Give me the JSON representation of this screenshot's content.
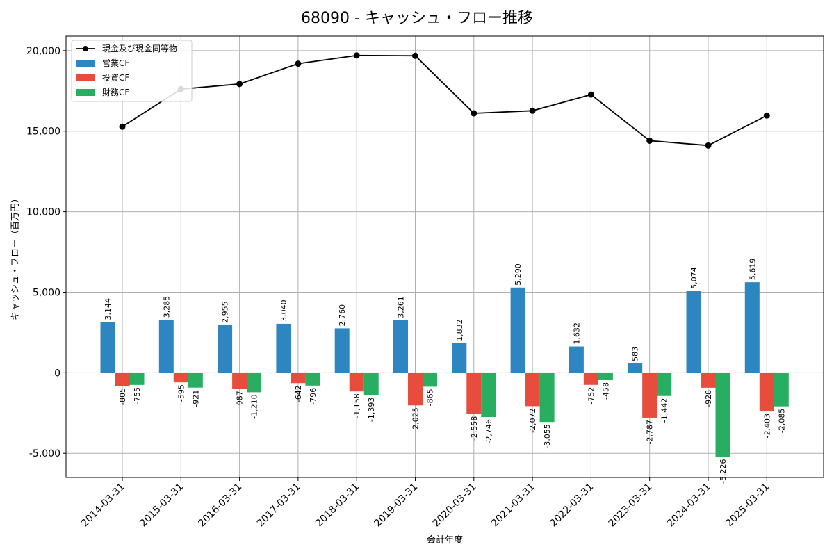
{
  "chart_data": {
    "type": "bar",
    "title": "68090 - キャッシュ・フロー推移",
    "xlabel": "会計年度",
    "ylabel": "キャッシュ・フロー（百万円）",
    "ylim": [
      -6500,
      20900
    ],
    "yticks": [
      -5000,
      0,
      5000,
      10000,
      15000,
      20000
    ],
    "ytick_labels": [
      "-5,000",
      "0",
      "5,000",
      "10,000",
      "15,000",
      "20,000"
    ],
    "grid": true,
    "legend_position": "top-left",
    "categories": [
      "2014-03-31",
      "2015-03-31",
      "2016-03-31",
      "2017-03-31",
      "2018-03-31",
      "2019-03-31",
      "2020-03-31",
      "2021-03-31",
      "2022-03-31",
      "2023-03-31",
      "2024-03-31",
      "2025-03-31"
    ],
    "series": [
      {
        "name": "営業CF",
        "type": "bar",
        "color": "#2e86c1",
        "values": [
          3144,
          3285,
          2955,
          3040,
          2760,
          3261,
          1832,
          5290,
          1632,
          583,
          5074,
          5619
        ],
        "labels": [
          "3,144",
          "3,285",
          "2,955",
          "3,040",
          "2,760",
          "3,261",
          "1,832",
          "5,290",
          "1,632",
          "583",
          "5,074",
          "5,619"
        ]
      },
      {
        "name": "投資CF",
        "type": "bar",
        "color": "#e74c3c",
        "values": [
          -805,
          -595,
          -987,
          -642,
          -1158,
          -2025,
          -2558,
          -2072,
          -752,
          -2787,
          -928,
          -2403
        ],
        "labels": [
          "-805",
          "-595",
          "-987",
          "-642",
          "-1,158",
          "-2,025",
          "-2,558",
          "-2,072",
          "-752",
          "-2,787",
          "-928",
          "-2,403"
        ]
      },
      {
        "name": "財務CF",
        "type": "bar",
        "color": "#27ae60",
        "values": [
          -755,
          -921,
          -1210,
          -796,
          -1393,
          -865,
          -2746,
          -3055,
          -458,
          -1442,
          -5226,
          -2085
        ],
        "labels": [
          "-755",
          "-921",
          "-1,210",
          "-796",
          "-1,393",
          "-865",
          "-2,746",
          "-3,055",
          "-458",
          "-1,442",
          "-5,226",
          "-2,085"
        ]
      },
      {
        "name": "現金及び現金同等物",
        "type": "line",
        "color": "#000000",
        "values": [
          15280,
          17610,
          17930,
          19190,
          19700,
          19680,
          16110,
          16270,
          17270,
          14410,
          14110,
          15970
        ]
      }
    ]
  }
}
